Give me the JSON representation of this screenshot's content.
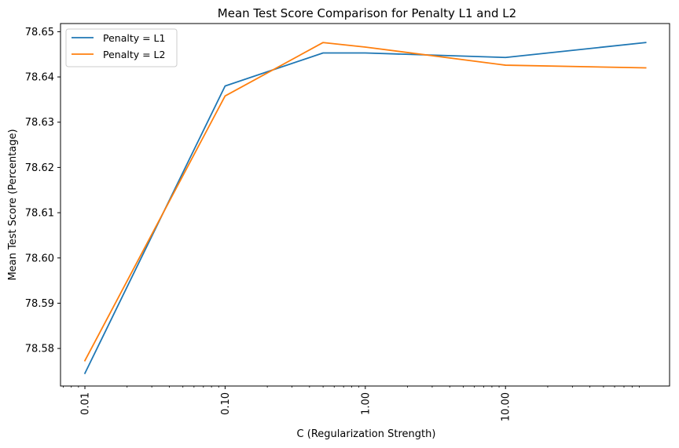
{
  "chart_data": {
    "type": "line",
    "title": "Mean Test Score Comparison for Penalty L1 and L2",
    "xlabel": "C (Regularization Strength)",
    "ylabel": "Mean Test Score (Percentage)",
    "x_scale": "log",
    "x": [
      0.01,
      0.1,
      0.5,
      1,
      10,
      100
    ],
    "xlim": [
      0.0067,
      148
    ],
    "ylim": [
      78.5717,
      78.6518
    ],
    "xticks": [
      0.01,
      0.1,
      1,
      10
    ],
    "xtick_labels": [
      "0.01",
      "0.10",
      "1.00",
      "10.00"
    ],
    "yticks": [
      78.58,
      78.59,
      78.6,
      78.61,
      78.62,
      78.63,
      78.64,
      78.65
    ],
    "ytick_labels": [
      "78.58",
      "78.59",
      "78.60",
      "78.61",
      "78.62",
      "78.63",
      "78.64",
      "78.65"
    ],
    "grid": false,
    "legend_position": "top-left",
    "series": [
      {
        "name": "Penalty = L1",
        "color": "#1f77b4",
        "values": [
          78.5745,
          78.638,
          78.6453,
          78.6453,
          78.6443,
          78.6476
        ]
      },
      {
        "name": "Penalty = L2",
        "color": "#ff7f0e",
        "values": [
          78.5773,
          78.6358,
          78.6476,
          78.6466,
          78.6426,
          78.642
        ]
      }
    ]
  }
}
